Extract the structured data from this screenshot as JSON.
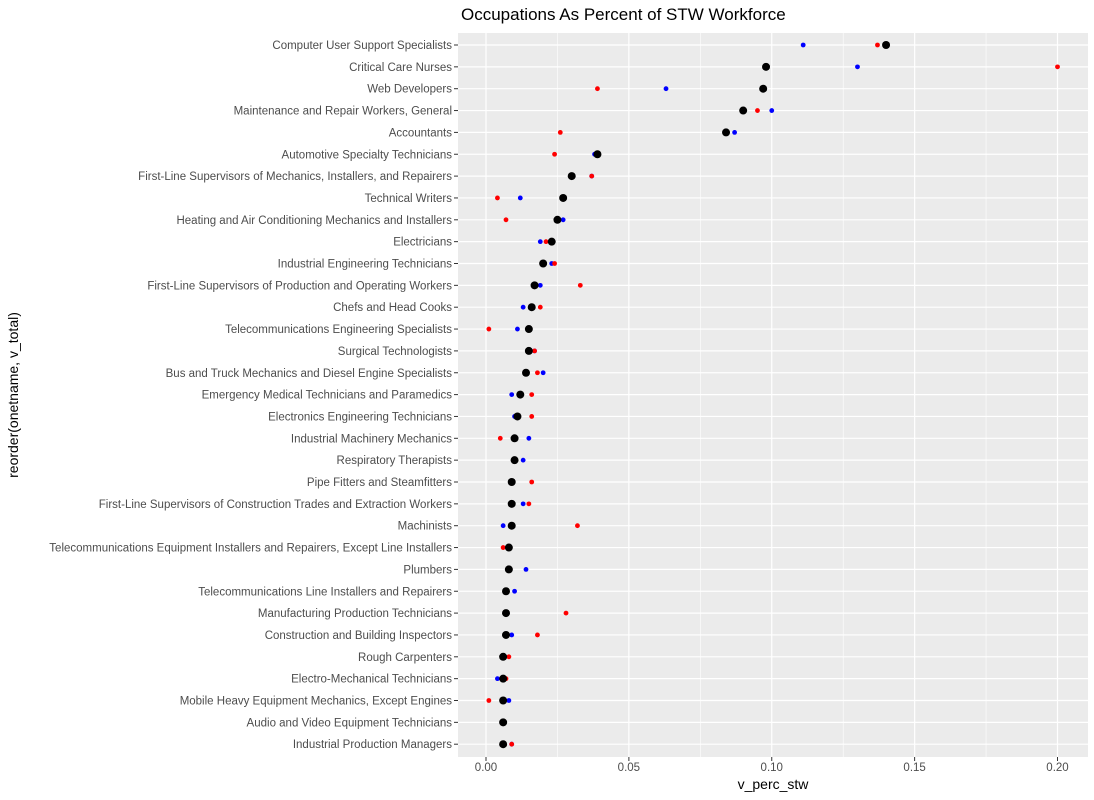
{
  "chart_data": {
    "type": "scatter",
    "title": "Occupations As Percent of STW Workforce",
    "xlabel": "v_perc_stw",
    "ylabel": "reorder(onetname, v_total)",
    "xlim": [
      -0.004,
      0.21
    ],
    "x_ticks": [
      "0.00",
      "0.05",
      "0.10",
      "0.15",
      "0.20"
    ],
    "x_tick_values": [
      0.0,
      0.05,
      0.1,
      0.15,
      0.2
    ],
    "grid": true,
    "legend": "none",
    "colors": {
      "panel": "#ebebeb",
      "grid": "#ffffff",
      "total": "#000000",
      "blue": "#0000ff",
      "red": "#ff0000"
    },
    "categories": [
      "Computer User Support Specialists",
      "Critical Care Nurses",
      "Web Developers",
      "Maintenance and Repair Workers, General",
      "Accountants",
      "Automotive Specialty Technicians",
      "First-Line Supervisors of Mechanics, Installers, and Repairers",
      "Technical Writers",
      "Heating and Air Conditioning Mechanics and Installers",
      "Electricians",
      "Industrial Engineering Technicians",
      "First-Line Supervisors of Production and Operating Workers",
      "Chefs and Head Cooks",
      "Telecommunications Engineering Specialists",
      "Surgical Technologists",
      "Bus and Truck Mechanics and Diesel Engine Specialists",
      "Emergency Medical Technicians and Paramedics",
      "Electronics Engineering Technicians",
      "Industrial Machinery Mechanics",
      "Respiratory Therapists",
      "Pipe Fitters and Steamfitters",
      "First-Line Supervisors of Construction Trades and Extraction Workers",
      "Machinists",
      "Telecommunications Equipment Installers and Repairers, Except Line Installers",
      "Plumbers",
      "Telecommunications Line Installers and Repairers",
      "Manufacturing Production Technicians",
      "Construction and Building Inspectors",
      "Rough Carpenters",
      "Electro-Mechanical Technicians",
      "Mobile Heavy Equipment Mechanics, Except Engines",
      "Audio and Video Equipment Technicians",
      "Industrial Production Managers"
    ],
    "series": [
      {
        "color": "blue",
        "size": "small",
        "values": [
          0.111,
          0.13,
          0.063,
          0.1,
          0.087,
          0.038,
          0.037,
          0.012,
          0.027,
          0.019,
          0.023,
          0.019,
          0.013,
          0.011,
          0.017,
          0.02,
          0.009,
          0.01,
          0.015,
          0.013,
          0.009,
          0.013,
          0.006,
          0.008,
          0.014,
          0.01,
          0.007,
          0.009,
          0.006,
          0.004,
          0.008,
          0.006,
          0.009
        ]
      },
      {
        "color": "red",
        "size": "small",
        "values": [
          0.137,
          0.2,
          0.039,
          0.095,
          0.026,
          0.024,
          0.037,
          0.004,
          0.007,
          0.021,
          0.024,
          0.033,
          0.019,
          0.001,
          0.017,
          0.018,
          0.016,
          0.016,
          0.005,
          0.01,
          0.016,
          0.015,
          0.032,
          0.006,
          0.008,
          0.007,
          0.028,
          0.018,
          0.008,
          0.007,
          0.001,
          0.006,
          0.009
        ]
      },
      {
        "color": "total",
        "size": "large",
        "values": [
          0.14,
          0.098,
          0.097,
          0.09,
          0.084,
          0.039,
          0.03,
          0.027,
          0.025,
          0.023,
          0.02,
          0.017,
          0.016,
          0.015,
          0.015,
          0.014,
          0.012,
          0.011,
          0.01,
          0.01,
          0.009,
          0.009,
          0.009,
          0.008,
          0.008,
          0.007,
          0.007,
          0.007,
          0.006,
          0.006,
          0.006,
          0.006,
          0.006
        ]
      }
    ]
  }
}
